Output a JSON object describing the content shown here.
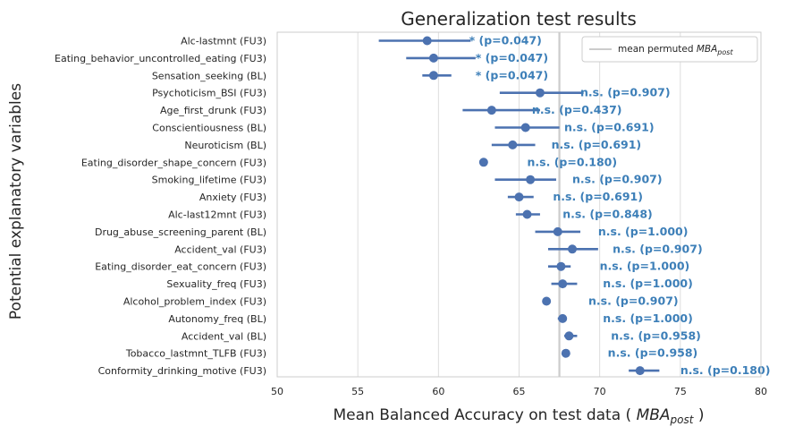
{
  "chart_data": {
    "type": "scatter",
    "title": "Generalization test results",
    "xlabel_main": "Mean Balanced Accuracy on test data ( ",
    "xlabel_var": "MBA",
    "xlabel_sub": "post",
    "xlabel_end": " )",
    "ylabel": "Potential explanatory variables",
    "xlim": [
      50,
      80
    ],
    "xticks": [
      "50",
      "55",
      "60",
      "65",
      "70",
      "75",
      "80"
    ],
    "grid": true,
    "reference_line": 67.5,
    "legend": {
      "position": "top-right",
      "label_main": "mean permuted ",
      "label_var": "MBA",
      "label_sub": "post"
    },
    "series_color": "#4c72b0",
    "annotation_color": "#3d7fb8",
    "reference_color": "#cccccc",
    "rows": [
      {
        "label": "Alc-lastmnt (FU3)",
        "mean": 59.3,
        "lo": 56.3,
        "hi": 62.0,
        "annotation": "* (p=0.047)",
        "ann_x": 61.9
      },
      {
        "label": "Eating_behavior_uncontrolled_eating (FU3)",
        "mean": 59.7,
        "lo": 58.0,
        "hi": 62.3,
        "annotation": "* (p=0.047)",
        "ann_x": 62.3
      },
      {
        "label": "Sensation_seeking (BL)",
        "mean": 59.7,
        "lo": 59.0,
        "hi": 60.8,
        "annotation": "* (p=0.047)",
        "ann_x": 62.3
      },
      {
        "label": "Psychoticism_BSI (FU3)",
        "mean": 66.3,
        "lo": 63.8,
        "hi": 69.0,
        "annotation": "n.s. (p=0.907)",
        "ann_x": 68.8
      },
      {
        "label": "Age_first_drunk (FU3)",
        "mean": 63.3,
        "lo": 61.5,
        "hi": 66.3,
        "annotation": "n.s. (p=0.437)",
        "ann_x": 65.8
      },
      {
        "label": "Conscientiousness (BL)",
        "mean": 65.4,
        "lo": 63.5,
        "hi": 67.5,
        "annotation": "n.s. (p=0.691)",
        "ann_x": 67.8
      },
      {
        "label": "Neuroticism (BL)",
        "mean": 64.6,
        "lo": 63.3,
        "hi": 66.0,
        "annotation": "n.s. (p=0.691)",
        "ann_x": 67.0
      },
      {
        "label": "Eating_disorder_shape_concern (FU3)",
        "mean": 62.8,
        "lo": 62.8,
        "hi": 62.8,
        "annotation": "n.s. (p=0.180)",
        "ann_x": 65.5
      },
      {
        "label": "Smoking_lifetime (FU3)",
        "mean": 65.7,
        "lo": 63.5,
        "hi": 67.3,
        "annotation": "n.s. (p=0.907)",
        "ann_x": 68.3
      },
      {
        "label": "Anxiety (FU3)",
        "mean": 65.0,
        "lo": 64.3,
        "hi": 65.9,
        "annotation": "n.s. (p=0.691)",
        "ann_x": 67.1
      },
      {
        "label": "Alc-last12mnt (FU3)",
        "mean": 65.5,
        "lo": 64.8,
        "hi": 66.3,
        "annotation": "n.s. (p=0.848)",
        "ann_x": 67.7
      },
      {
        "label": "Drug_abuse_screening_parent (BL)",
        "mean": 67.4,
        "lo": 66.0,
        "hi": 68.8,
        "annotation": "n.s. (p=1.000)",
        "ann_x": 69.9
      },
      {
        "label": "Accident_val (FU3)",
        "mean": 68.3,
        "lo": 66.8,
        "hi": 69.9,
        "annotation": "n.s. (p=0.907)",
        "ann_x": 70.8
      },
      {
        "label": "Eating_disorder_eat_concern (FU3)",
        "mean": 67.6,
        "lo": 66.8,
        "hi": 68.2,
        "annotation": "n.s. (p=1.000)",
        "ann_x": 70.0
      },
      {
        "label": "Sexuality_freq (FU3)",
        "mean": 67.7,
        "lo": 67.0,
        "hi": 68.6,
        "annotation": "n.s. (p=1.000)",
        "ann_x": 70.2
      },
      {
        "label": "Alcohol_problem_index (FU3)",
        "mean": 66.7,
        "lo": 66.7,
        "hi": 66.7,
        "annotation": "n.s. (p=0.907)",
        "ann_x": 69.3
      },
      {
        "label": "Autonomy_freq (BL)",
        "mean": 67.7,
        "lo": 67.4,
        "hi": 67.9,
        "annotation": "n.s. (p=1.000)",
        "ann_x": 70.2
      },
      {
        "label": "Accident_val (BL)",
        "mean": 68.1,
        "lo": 67.8,
        "hi": 68.6,
        "annotation": "n.s. (p=0.958)",
        "ann_x": 70.7
      },
      {
        "label": "Tobacco_lastmnt_TLFB (FU3)",
        "mean": 67.9,
        "lo": 67.9,
        "hi": 67.9,
        "annotation": "n.s. (p=0.958)",
        "ann_x": 70.5
      },
      {
        "label": "Conformity_drinking_motive (FU3)",
        "mean": 72.5,
        "lo": 71.8,
        "hi": 73.7,
        "annotation": "n.s. (p=0.180)",
        "ann_x": 75.0
      }
    ]
  }
}
